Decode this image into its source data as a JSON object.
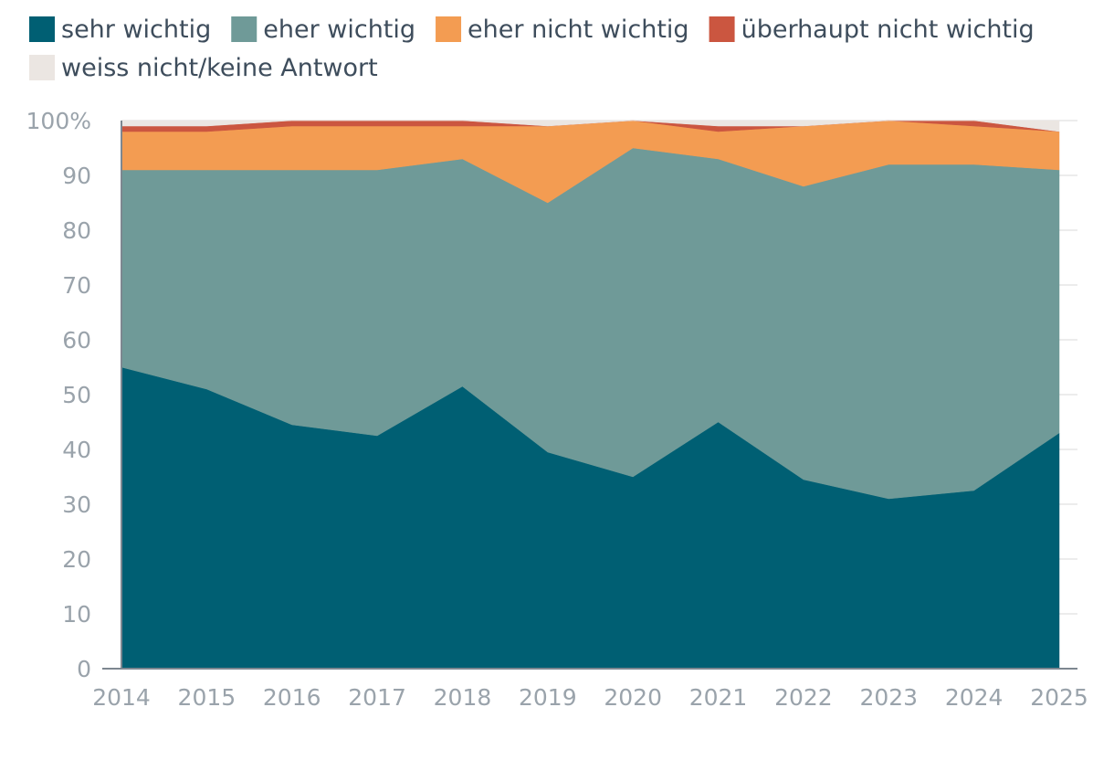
{
  "chart_data": {
    "type": "area",
    "stacked": true,
    "x": [
      "2014",
      "2015",
      "2016",
      "2017",
      "2018",
      "2019",
      "2020",
      "2021",
      "2022",
      "2023",
      "2024",
      "2025"
    ],
    "ylim": [
      0,
      100
    ],
    "yticks": [
      0,
      10,
      20,
      30,
      40,
      50,
      60,
      70,
      80,
      90,
      100
    ],
    "ytick_labels": [
      "0",
      "10",
      "20",
      "30",
      "40",
      "50",
      "60",
      "70",
      "80",
      "90",
      "100%"
    ],
    "grid": true,
    "legend_position": "top",
    "series": [
      {
        "name": "sehr wichtig",
        "color": "#005f73",
        "values": [
          55,
          51,
          44.5,
          42.5,
          51.5,
          39.5,
          35,
          45,
          34.5,
          31,
          32.5,
          43
        ]
      },
      {
        "name": "eher wichtig",
        "color": "#6f9a98",
        "values": [
          36,
          40,
          46.5,
          48.5,
          41.5,
          45.5,
          60,
          48,
          53.5,
          61,
          59.5,
          48
        ]
      },
      {
        "name": "eher nicht wichtig",
        "color": "#f39c52",
        "values": [
          7,
          7,
          8,
          8,
          6,
          14,
          5,
          5,
          11,
          8,
          7,
          7
        ]
      },
      {
        "name": "überhaupt nicht wichtig",
        "color": "#cb5640",
        "values": [
          1,
          1,
          1,
          1,
          1,
          0,
          0,
          1,
          0,
          0,
          1,
          0
        ]
      },
      {
        "name": "weiss nicht/keine Antwort",
        "color": "#ebe6e2",
        "values": [
          1,
          1,
          0,
          0,
          0,
          1,
          0,
          1,
          1,
          0,
          0,
          2
        ]
      }
    ]
  }
}
